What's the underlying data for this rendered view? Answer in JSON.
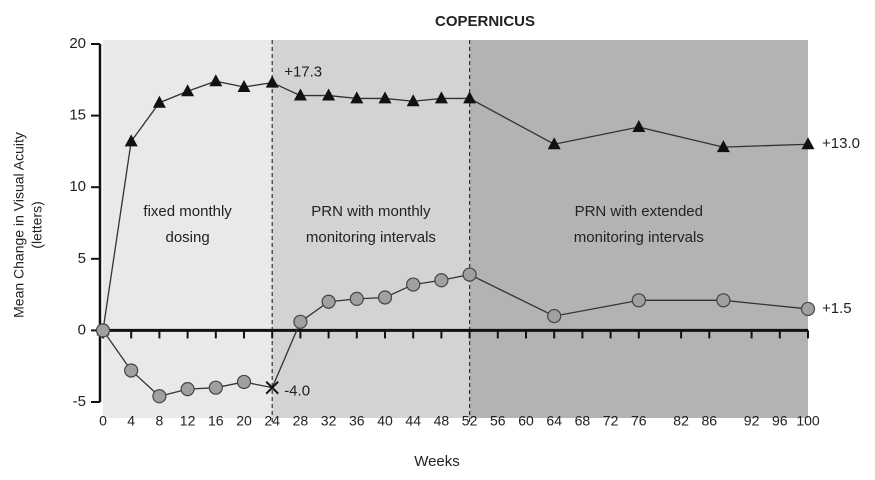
{
  "chart_data": {
    "type": "line",
    "title": "COPERNICUS",
    "xlabel": "Weeks",
    "ylabel": [
      "Mean Change in Visual Acuity",
      "(letters)"
    ],
    "xlim": [
      0,
      100
    ],
    "ylim": [
      -5,
      20
    ],
    "xticks": [
      0,
      4,
      8,
      12,
      16,
      20,
      24,
      28,
      32,
      36,
      40,
      44,
      48,
      52,
      56,
      60,
      64,
      68,
      72,
      76,
      82,
      86,
      92,
      96,
      100
    ],
    "yticks": [
      -5,
      0,
      5,
      10,
      15,
      20
    ],
    "phases": [
      {
        "start": 0,
        "end": 24,
        "color": "#e9e9e9",
        "label": [
          "fixed monthly",
          "dosing"
        ]
      },
      {
        "start": 24,
        "end": 52,
        "color": "#d3d3d3",
        "label": [
          "PRN with monthly",
          "monitoring intervals"
        ]
      },
      {
        "start": 52,
        "end": 100,
        "color": "#b3b3b3",
        "label": [
          "PRN with extended",
          "monitoring intervals"
        ]
      }
    ],
    "x": [
      0,
      4,
      8,
      12,
      16,
      20,
      24,
      28,
      32,
      36,
      40,
      44,
      48,
      52,
      64,
      76,
      88,
      100
    ],
    "series": [
      {
        "marker": "triangle",
        "color": "#111111",
        "values": [
          0,
          13.2,
          15.9,
          16.7,
          17.4,
          17.0,
          17.3,
          16.4,
          16.4,
          16.2,
          16.2,
          16.0,
          16.2,
          16.2,
          13.0,
          14.2,
          12.8,
          13.0
        ],
        "value_labels": [
          null,
          null,
          null,
          null,
          null,
          null,
          "+17.3",
          null,
          null,
          null,
          null,
          null,
          null,
          null,
          null,
          null,
          null,
          "+13.0"
        ]
      },
      {
        "marker": "circle",
        "color": "#a0a0a0",
        "values": [
          0,
          -2.8,
          -4.6,
          -4.1,
          -4.0,
          -3.6,
          -4.0,
          0.6,
          2.0,
          2.2,
          2.3,
          3.2,
          3.5,
          3.9,
          1.0,
          2.1,
          2.1,
          1.5
        ],
        "value_labels": [
          null,
          null,
          null,
          null,
          null,
          null,
          "-4.0",
          null,
          null,
          null,
          null,
          null,
          null,
          null,
          null,
          null,
          null,
          "+1.5"
        ]
      }
    ]
  }
}
